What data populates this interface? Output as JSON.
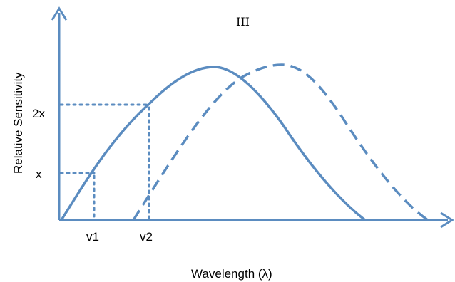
{
  "panel_label": "III",
  "x_axis_label": "Wavelength (λ)",
  "y_axis_label": "Relative Sensitivity",
  "y_ticks": {
    "upper": "2x",
    "lower": "x"
  },
  "x_ticks": {
    "first": "v1",
    "second": "v2"
  },
  "colors": {
    "curve": "#5b8cc0",
    "axis": "#5b8cc0",
    "text": "#000000"
  },
  "curves": [
    {
      "name": "",
      "style": "solid"
    },
    {
      "name": "",
      "style": "dashed"
    }
  ]
}
